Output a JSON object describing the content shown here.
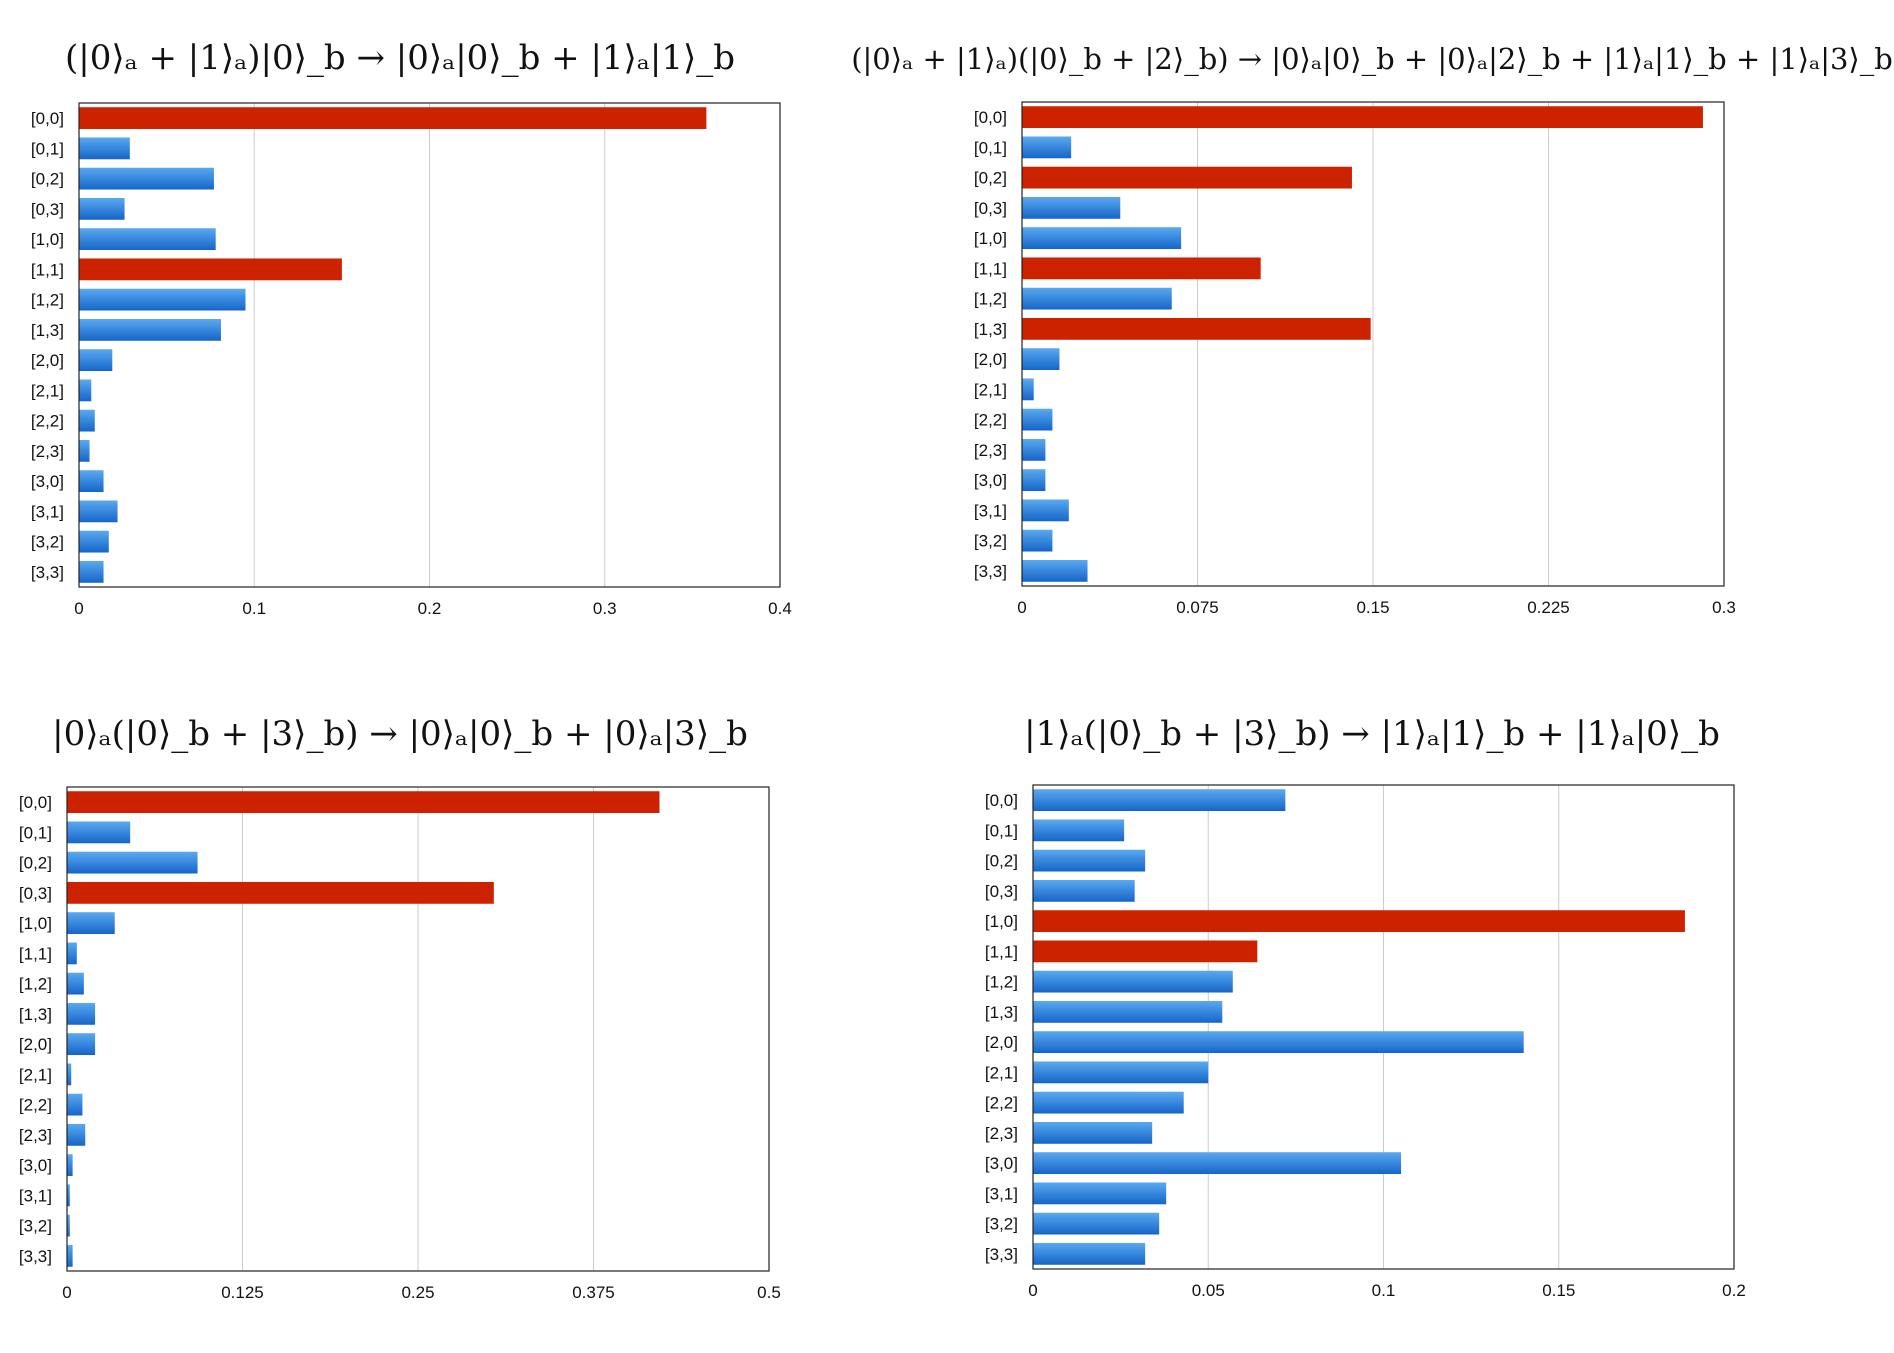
{
  "colors": {
    "highlight": "#cc2200",
    "bar_top": "#5aa9f0",
    "bar_bottom": "#1565c9",
    "grid": "#cccccc",
    "frame": "#222222"
  },
  "chart_data": [
    {
      "type": "bar",
      "orientation": "horizontal",
      "title": "(|0⟩ₐ + |1⟩ₐ)|0⟩_b → |0⟩ₐ|0⟩_b + |1⟩ₐ|1⟩_b",
      "categories": [
        "[0,0]",
        "[0,1]",
        "[0,2]",
        "[0,3]",
        "[1,0]",
        "[1,1]",
        "[1,2]",
        "[1,3]",
        "[2,0]",
        "[2,1]",
        "[2,2]",
        "[2,3]",
        "[3,0]",
        "[3,1]",
        "[3,2]",
        "[3,3]"
      ],
      "values": [
        0.358,
        0.029,
        0.077,
        0.026,
        0.078,
        0.15,
        0.095,
        0.081,
        0.019,
        0.007,
        0.009,
        0.006,
        0.014,
        0.022,
        0.017,
        0.014
      ],
      "highlighted": [
        "[0,0]",
        "[1,1]"
      ],
      "xlim": [
        0,
        0.4
      ],
      "ticks": [
        0,
        0.1,
        0.2,
        0.3,
        0.4
      ],
      "tick_labels": [
        "0",
        "0.1",
        "0.2",
        "0.3",
        "0.4"
      ],
      "grid": true
    },
    {
      "type": "bar",
      "orientation": "horizontal",
      "title": "(|0⟩ₐ + |1⟩ₐ)(|0⟩_b + |2⟩_b) → |0⟩ₐ|0⟩_b + |0⟩ₐ|2⟩_b + |1⟩ₐ|1⟩_b + |1⟩ₐ|3⟩_b",
      "categories": [
        "[0,0]",
        "[0,1]",
        "[0,2]",
        "[0,3]",
        "[1,0]",
        "[1,1]",
        "[1,2]",
        "[1,3]",
        "[2,0]",
        "[2,1]",
        "[2,2]",
        "[2,3]",
        "[3,0]",
        "[3,1]",
        "[3,2]",
        "[3,3]"
      ],
      "values": [
        0.291,
        0.021,
        0.141,
        0.042,
        0.068,
        0.102,
        0.064,
        0.149,
        0.016,
        0.005,
        0.013,
        0.01,
        0.01,
        0.02,
        0.013,
        0.028
      ],
      "highlighted": [
        "[0,0]",
        "[0,2]",
        "[1,1]",
        "[1,3]"
      ],
      "xlim": [
        0,
        0.3
      ],
      "ticks": [
        0,
        0.075,
        0.15,
        0.225,
        0.3
      ],
      "tick_labels": [
        "0",
        "0.075",
        "0.15",
        "0.225",
        "0.3"
      ],
      "grid": true
    },
    {
      "type": "bar",
      "orientation": "horizontal",
      "title": "|0⟩ₐ(|0⟩_b + |3⟩_b) → |0⟩ₐ|0⟩_b + |0⟩ₐ|3⟩_b",
      "categories": [
        "[0,0]",
        "[0,1]",
        "[0,2]",
        "[0,3]",
        "[1,0]",
        "[1,1]",
        "[1,2]",
        "[1,3]",
        "[2,0]",
        "[2,1]",
        "[2,2]",
        "[2,3]",
        "[3,0]",
        "[3,1]",
        "[3,2]",
        "[3,3]"
      ],
      "values": [
        0.422,
        0.045,
        0.093,
        0.304,
        0.034,
        0.007,
        0.012,
        0.02,
        0.02,
        0.003,
        0.011,
        0.013,
        0.004,
        0.002,
        0.002,
        0.004
      ],
      "highlighted": [
        "[0,0]",
        "[0,3]"
      ],
      "xlim": [
        0,
        0.5
      ],
      "ticks": [
        0,
        0.125,
        0.25,
        0.375,
        0.5
      ],
      "tick_labels": [
        "0",
        "0.125",
        "0.25",
        "0.375",
        "0.5"
      ],
      "grid": true
    },
    {
      "type": "bar",
      "orientation": "horizontal",
      "title": "|1⟩ₐ(|0⟩_b + |3⟩_b) → |1⟩ₐ|1⟩_b + |1⟩ₐ|0⟩_b",
      "categories": [
        "[0,0]",
        "[0,1]",
        "[0,2]",
        "[0,3]",
        "[1,0]",
        "[1,1]",
        "[1,2]",
        "[1,3]",
        "[2,0]",
        "[2,1]",
        "[2,2]",
        "[2,3]",
        "[3,0]",
        "[3,1]",
        "[3,2]",
        "[3,3]"
      ],
      "values": [
        0.072,
        0.026,
        0.032,
        0.029,
        0.186,
        0.064,
        0.057,
        0.054,
        0.14,
        0.05,
        0.043,
        0.034,
        0.105,
        0.038,
        0.036,
        0.032
      ],
      "highlighted": [
        "[1,0]",
        "[1,1]"
      ],
      "xlim": [
        0,
        0.2
      ],
      "ticks": [
        0,
        0.05,
        0.1,
        0.15,
        0.2
      ],
      "tick_labels": [
        "0",
        "0.05",
        "0.1",
        "0.15",
        "0.2"
      ],
      "grid": true
    }
  ]
}
